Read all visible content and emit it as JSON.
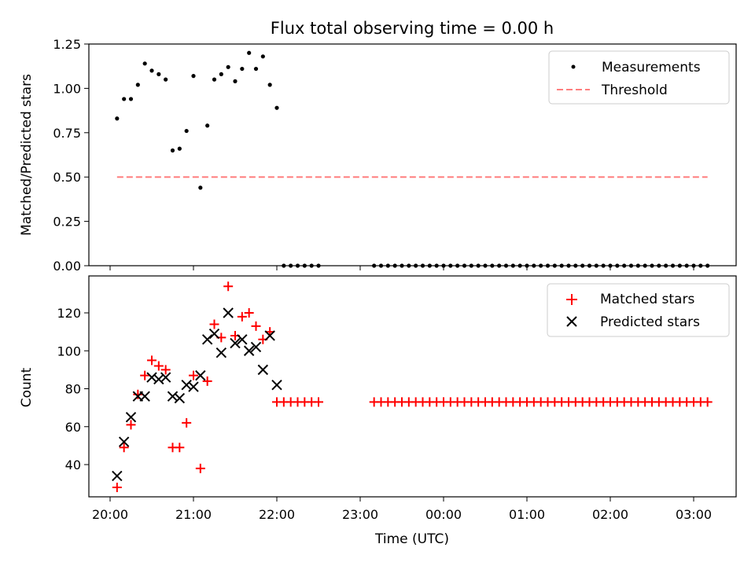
{
  "title": "Flux total observing time = 0.00 h",
  "colors": {
    "measurement": "#000000",
    "threshold": "#ff7f7f",
    "matched": "#ff0000",
    "predicted": "#000000"
  },
  "chart_data": [
    {
      "type": "scatter",
      "panel": "top",
      "ylabel": "Matched/Predicted stars",
      "xlabel": "",
      "ylim": [
        0,
        1.25
      ],
      "yticks": [
        "0.00",
        "0.25",
        "0.50",
        "0.75",
        "1.00",
        "1.25"
      ],
      "legend_position": "top-right",
      "series": [
        {
          "name": "Measurements",
          "kind": "scatter",
          "x": [
            "20:05",
            "20:10",
            "20:15",
            "20:20",
            "20:25",
            "20:30",
            "20:35",
            "20:40",
            "20:45",
            "20:50",
            "20:55",
            "21:00",
            "21:05",
            "21:10",
            "21:15",
            "21:20",
            "21:25",
            "21:30",
            "21:35",
            "21:40",
            "21:45",
            "21:50",
            "21:55",
            "22:00",
            "22:05",
            "22:10",
            "22:15",
            "22:20",
            "22:25",
            "22:30",
            "23:10",
            "23:15",
            "23:20",
            "23:25",
            "23:30",
            "23:35",
            "23:40",
            "23:45",
            "23:50",
            "23:55",
            "00:00",
            "00:05",
            "00:10",
            "00:15",
            "00:20",
            "00:25",
            "00:30",
            "00:35",
            "00:40",
            "00:45",
            "00:50",
            "00:55",
            "01:00",
            "01:05",
            "01:10",
            "01:15",
            "01:20",
            "01:25",
            "01:30",
            "01:35",
            "01:40",
            "01:45",
            "01:50",
            "01:55",
            "02:00",
            "02:05",
            "02:10",
            "02:15",
            "02:20",
            "02:25",
            "02:30",
            "02:35",
            "02:40",
            "02:45",
            "02:50",
            "02:55",
            "03:00",
            "03:05",
            "03:10"
          ],
          "y": [
            0.83,
            0.94,
            0.94,
            1.02,
            1.14,
            1.1,
            1.08,
            1.05,
            0.65,
            0.66,
            0.76,
            1.07,
            0.44,
            0.79,
            1.05,
            1.08,
            1.12,
            1.04,
            1.11,
            1.2,
            1.11,
            1.18,
            1.02,
            0.89,
            0,
            0,
            0,
            0,
            0,
            0,
            0,
            0,
            0,
            0,
            0,
            0,
            0,
            0,
            0,
            0,
            0,
            0,
            0,
            0,
            0,
            0,
            0,
            0,
            0,
            0,
            0,
            0,
            0,
            0,
            0,
            0,
            0,
            0,
            0,
            0,
            0,
            0,
            0,
            0,
            0,
            0,
            0,
            0,
            0,
            0,
            0,
            0,
            0,
            0,
            0,
            0,
            0,
            0,
            0
          ]
        },
        {
          "name": "Threshold",
          "kind": "line",
          "x": [
            "20:05",
            "03:10"
          ],
          "y": [
            0.5,
            0.5
          ]
        }
      ]
    },
    {
      "type": "scatter",
      "panel": "bottom",
      "ylabel": "Count",
      "xlabel": "Time (UTC)",
      "ylim": [
        23,
        140
      ],
      "yticks": [
        "40",
        "60",
        "80",
        "100",
        "120"
      ],
      "xticks": [
        "20:00",
        "21:00",
        "22:00",
        "23:00",
        "00:00",
        "01:00",
        "02:00",
        "03:00"
      ],
      "legend_position": "top-right",
      "series": [
        {
          "name": "Matched stars",
          "kind": "scatter",
          "x": [
            "20:05",
            "20:10",
            "20:15",
            "20:20",
            "20:25",
            "20:30",
            "20:35",
            "20:40",
            "20:45",
            "20:50",
            "20:55",
            "21:00",
            "21:05",
            "21:10",
            "21:15",
            "21:20",
            "21:25",
            "21:30",
            "21:35",
            "21:40",
            "21:45",
            "21:50",
            "21:55",
            "22:00",
            "22:05",
            "22:10",
            "22:15",
            "22:20",
            "22:25",
            "22:30",
            "23:10",
            "23:15",
            "23:20",
            "23:25",
            "23:30",
            "23:35",
            "23:40",
            "23:45",
            "23:50",
            "23:55",
            "00:00",
            "00:05",
            "00:10",
            "00:15",
            "00:20",
            "00:25",
            "00:30",
            "00:35",
            "00:40",
            "00:45",
            "00:50",
            "00:55",
            "01:00",
            "01:05",
            "01:10",
            "01:15",
            "01:20",
            "01:25",
            "01:30",
            "01:35",
            "01:40",
            "01:45",
            "01:50",
            "01:55",
            "02:00",
            "02:05",
            "02:10",
            "02:15",
            "02:20",
            "02:25",
            "02:30",
            "02:35",
            "02:40",
            "02:45",
            "02:50",
            "02:55",
            "03:00",
            "03:05",
            "03:10"
          ],
          "y": [
            28,
            49,
            61,
            77,
            87,
            95,
            92,
            90,
            49,
            49,
            62,
            87,
            38,
            84,
            114,
            107,
            134,
            108,
            118,
            120,
            113,
            106,
            110,
            73,
            73,
            73,
            73,
            73,
            73,
            73,
            73,
            73,
            73,
            73,
            73,
            73,
            73,
            73,
            73,
            73,
            73,
            73,
            73,
            73,
            73,
            73,
            73,
            73,
            73,
            73,
            73,
            73,
            73,
            73,
            73,
            73,
            73,
            73,
            73,
            73,
            73,
            73,
            73,
            73,
            73,
            73,
            73,
            73,
            73,
            73,
            73,
            73,
            73,
            73,
            73,
            73,
            73,
            73,
            73
          ]
        },
        {
          "name": "Predicted stars",
          "kind": "scatter",
          "x": [
            "20:05",
            "20:10",
            "20:15",
            "20:20",
            "20:25",
            "20:30",
            "20:35",
            "20:40",
            "20:45",
            "20:50",
            "20:55",
            "21:00",
            "21:05",
            "21:10",
            "21:15",
            "21:20",
            "21:25",
            "21:30",
            "21:35",
            "21:40",
            "21:45",
            "21:50",
            "21:55",
            "22:00"
          ],
          "y": [
            34,
            52,
            65,
            76,
            76,
            86,
            85,
            86,
            76,
            75,
            82,
            81,
            87,
            106,
            109,
            99,
            120,
            104,
            106,
            100,
            102,
            90,
            108,
            82
          ]
        }
      ]
    }
  ]
}
